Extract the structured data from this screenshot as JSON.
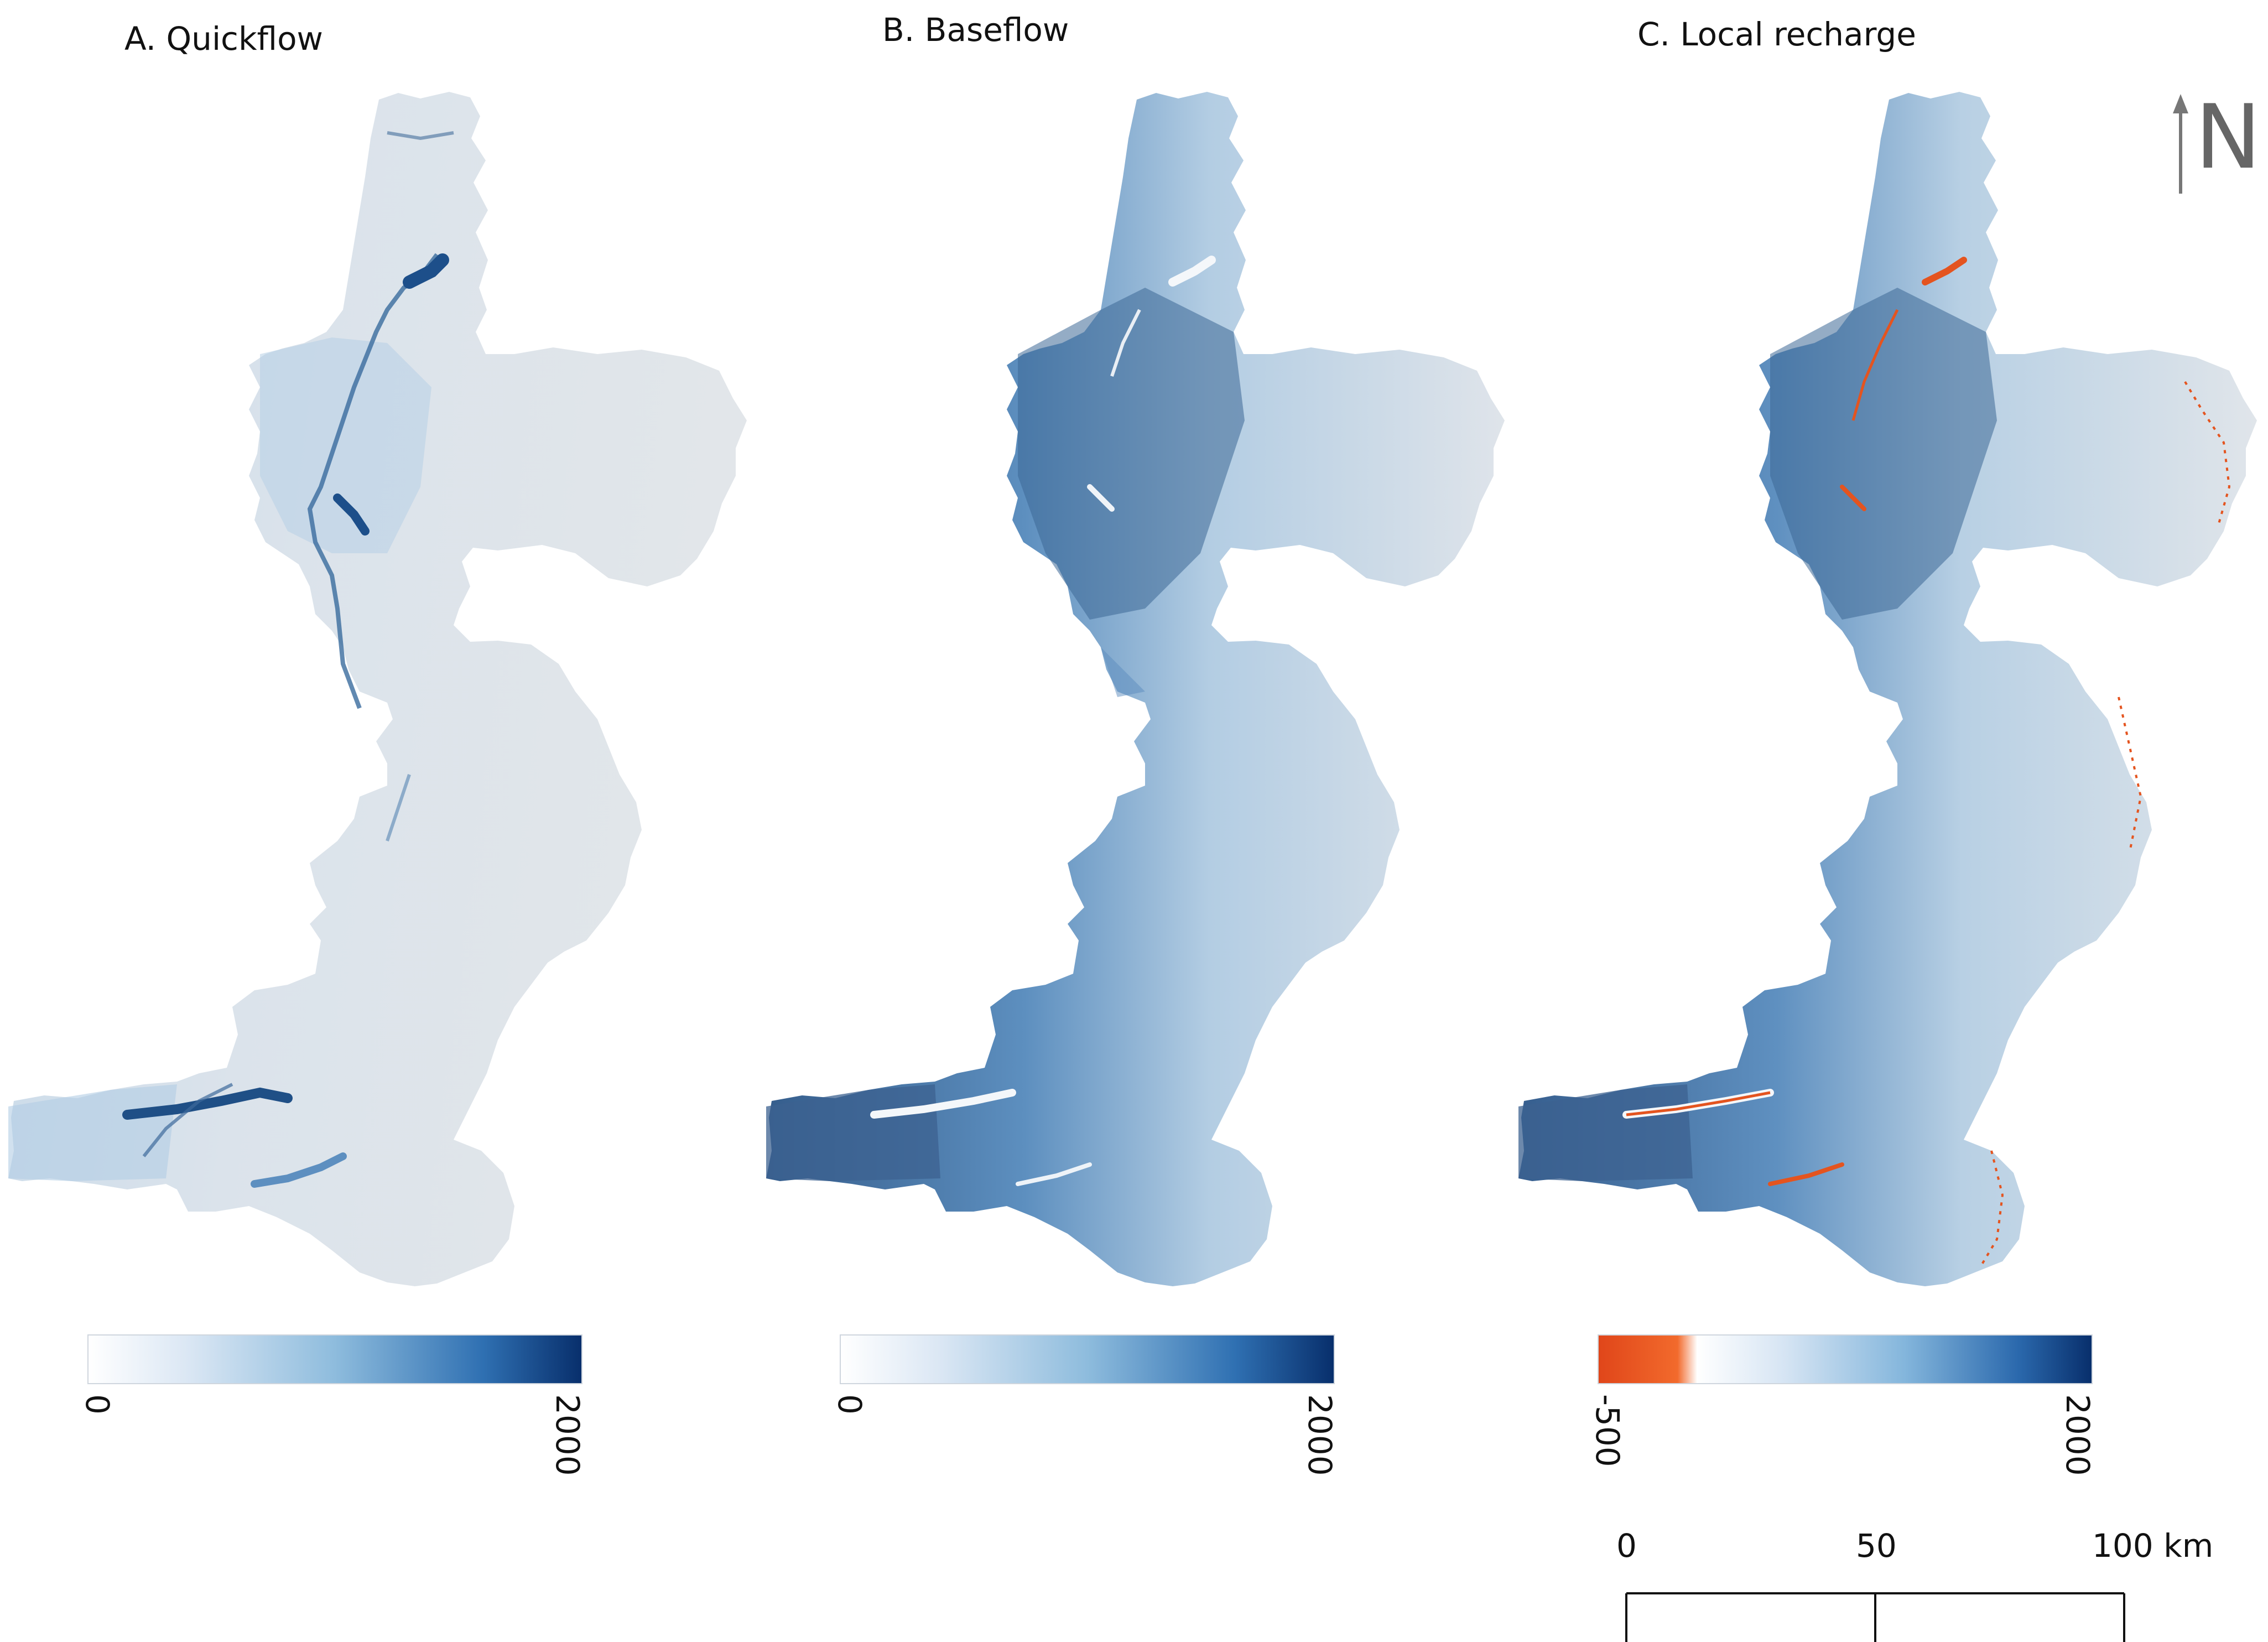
{
  "panels": [
    {
      "title": "A. Quickflow",
      "legend_min": "0",
      "legend_max": "2000"
    },
    {
      "title": "B. Baseflow",
      "legend_min": "0",
      "legend_max": "2000"
    },
    {
      "title": "C. Local recharge",
      "legend_min": "-500",
      "legend_max": "2000"
    }
  ],
  "north_arrow": {
    "label": "N"
  },
  "scale_bar": {
    "labels": [
      "0",
      "50",
      "100 km"
    ]
  },
  "colors": {
    "low": "#e1e5ea",
    "blue_light": "#b9d3ea",
    "blue_mid": "#6b9fcc",
    "blue_dark": "#3a6596",
    "blue_darkest": "#083474",
    "negative": "#e4541f",
    "river_white": "#f5f7fa"
  }
}
